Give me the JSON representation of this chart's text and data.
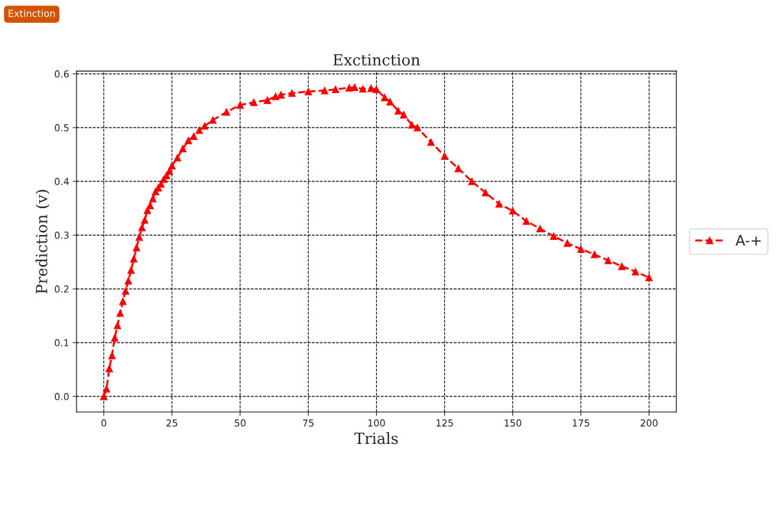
{
  "chart_data": {
    "type": "line",
    "title": "Exctinction",
    "xlabel": "Trials",
    "ylabel": "Prediction (v)",
    "annotations": [
      "Extinction"
    ],
    "x": [
      0,
      1,
      2,
      3,
      4,
      5,
      6,
      7,
      8,
      9,
      10,
      11,
      12,
      13,
      14,
      15,
      16,
      17,
      18,
      19,
      20,
      21,
      22,
      23,
      24,
      25,
      27,
      29,
      31,
      33,
      35,
      37,
      40,
      45,
      50,
      55,
      60,
      63,
      65,
      69,
      75,
      81,
      85,
      90,
      92,
      95,
      98,
      100,
      103,
      105,
      108,
      110,
      113,
      115,
      120,
      125,
      130,
      135,
      140,
      145,
      150,
      155,
      160,
      165,
      170,
      175,
      180,
      185,
      190,
      195,
      200
    ],
    "series": [
      {
        "name": "A-+",
        "color": "#ff0000",
        "marker": "triangle",
        "line_style": "dashed",
        "values": [
          0.0,
          0.014,
          0.052,
          0.076,
          0.109,
          0.132,
          0.155,
          0.177,
          0.196,
          0.215,
          0.235,
          0.256,
          0.277,
          0.296,
          0.314,
          0.328,
          0.346,
          0.355,
          0.368,
          0.381,
          0.388,
          0.395,
          0.404,
          0.411,
          0.419,
          0.429,
          0.444,
          0.461,
          0.476,
          0.484,
          0.495,
          0.503,
          0.514,
          0.529,
          0.542,
          0.547,
          0.551,
          0.558,
          0.561,
          0.564,
          0.567,
          0.569,
          0.571,
          0.574,
          0.575,
          0.572,
          0.573,
          0.571,
          0.556,
          0.548,
          0.531,
          0.524,
          0.505,
          0.5,
          0.473,
          0.447,
          0.424,
          0.4,
          0.379,
          0.358,
          0.345,
          0.326,
          0.312,
          0.298,
          0.285,
          0.274,
          0.264,
          0.253,
          0.242,
          0.232,
          0.221
        ]
      }
    ],
    "xlim": [
      -10,
      210
    ],
    "ylim": [
      -0.029,
      0.605
    ],
    "xticks": [
      0,
      25,
      50,
      75,
      100,
      125,
      150,
      175,
      200
    ],
    "yticks": [
      {
        "value": 0,
        "label": "0.0"
      },
      0.1,
      0.2,
      0.3,
      0.4,
      0.5,
      0.6
    ],
    "grid": true,
    "legend": "right"
  }
}
